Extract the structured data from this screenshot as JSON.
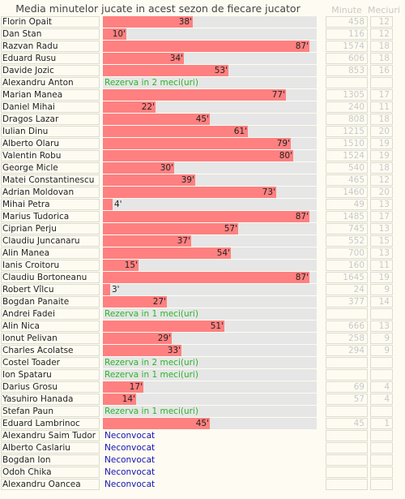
{
  "chart_data": {
    "type": "bar",
    "title": "Media minutelor jucate in acest sezon de fiecare jucator",
    "columns": {
      "minutes": "Minute",
      "matches": "Meciuri"
    },
    "xlim": [
      0,
      90
    ],
    "players": [
      {
        "name": "Florin Opait",
        "avg": 38,
        "label": "38'",
        "minutes": 458,
        "matches": 12
      },
      {
        "name": "Dan Stan",
        "avg": 10,
        "label": "10'",
        "minutes": 116,
        "matches": 12
      },
      {
        "name": "Razvan Radu",
        "avg": 87,
        "label": "87'",
        "minutes": 1574,
        "matches": 18
      },
      {
        "name": "Eduard Rusu",
        "avg": 34,
        "label": "34'",
        "minutes": 606,
        "matches": 18
      },
      {
        "name": "Davide Jozic",
        "avg": 53,
        "label": "53'",
        "minutes": 853,
        "matches": 16
      },
      {
        "name": "Alexandru Anton",
        "note": "Rezerva in 2 meci(uri)",
        "note_type": "rezerva"
      },
      {
        "name": "Marian Manea",
        "avg": 77,
        "label": "77'",
        "minutes": 1305,
        "matches": 17
      },
      {
        "name": "Daniel Mihai",
        "avg": 22,
        "label": "22'",
        "minutes": 240,
        "matches": 11
      },
      {
        "name": "Dragos Lazar",
        "avg": 45,
        "label": "45'",
        "minutes": 808,
        "matches": 18
      },
      {
        "name": "Iulian Dinu",
        "avg": 61,
        "label": "61'",
        "minutes": 1215,
        "matches": 20
      },
      {
        "name": "Alberto Olaru",
        "avg": 79,
        "label": "79'",
        "minutes": 1510,
        "matches": 19
      },
      {
        "name": "Valentin Robu",
        "avg": 80,
        "label": "80'",
        "minutes": 1524,
        "matches": 19
      },
      {
        "name": "George Micle",
        "avg": 30,
        "label": "30'",
        "minutes": 540,
        "matches": 18
      },
      {
        "name": "Matei Constantinescu",
        "avg": 39,
        "label": "39'",
        "minutes": 465,
        "matches": 12
      },
      {
        "name": "Adrian Moldovan",
        "avg": 73,
        "label": "73'",
        "minutes": 1460,
        "matches": 20
      },
      {
        "name": "Mihai Petra",
        "avg": 4,
        "label": "4'",
        "minutes": 49,
        "matches": 13
      },
      {
        "name": "Marius Tudorica",
        "avg": 87,
        "label": "87'",
        "minutes": 1485,
        "matches": 17
      },
      {
        "name": "Ciprian Perju",
        "avg": 57,
        "label": "57'",
        "minutes": 745,
        "matches": 13
      },
      {
        "name": "Claudiu Juncanaru",
        "avg": 37,
        "label": "37'",
        "minutes": 552,
        "matches": 15
      },
      {
        "name": "Alin Manea",
        "avg": 54,
        "label": "54'",
        "minutes": 700,
        "matches": 13
      },
      {
        "name": "Ianis Croitoru",
        "avg": 15,
        "label": "15'",
        "minutes": 160,
        "matches": 11
      },
      {
        "name": "Claudiu Bortoneanu",
        "avg": 87,
        "label": "87'",
        "minutes": 1645,
        "matches": 19
      },
      {
        "name": "Robert Vîlcu",
        "avg": 3,
        "label": "3'",
        "minutes": 24,
        "matches": 9
      },
      {
        "name": "Bogdan Panaite",
        "avg": 27,
        "label": "27'",
        "minutes": 377,
        "matches": 14
      },
      {
        "name": "Andrei Fadei",
        "note": "Rezerva in 1 meci(uri)",
        "note_type": "rezerva"
      },
      {
        "name": "Alin Nica",
        "avg": 51,
        "label": "51'",
        "minutes": 666,
        "matches": 13
      },
      {
        "name": "Ionut Pelivan",
        "avg": 29,
        "label": "29'",
        "minutes": 258,
        "matches": 9
      },
      {
        "name": "Charles Acolatse",
        "avg": 33,
        "label": "33'",
        "minutes": 294,
        "matches": 9
      },
      {
        "name": "Costel Toader",
        "note": "Rezerva in 2 meci(uri)",
        "note_type": "rezerva"
      },
      {
        "name": "Ion Spataru",
        "note": "Rezerva in 1 meci(uri)",
        "note_type": "rezerva"
      },
      {
        "name": "Darius Grosu",
        "avg": 17,
        "label": "17'",
        "minutes": 69,
        "matches": 4
      },
      {
        "name": "Yasuhiro Hanada",
        "avg": 14,
        "label": "14'",
        "minutes": 57,
        "matches": 4
      },
      {
        "name": "Stefan Paun",
        "note": "Rezerva in 1 meci(uri)",
        "note_type": "rezerva"
      },
      {
        "name": "Eduard Lambrinoc",
        "avg": 45,
        "label": "45'",
        "minutes": 45,
        "matches": 1
      },
      {
        "name": "Alexandru Saim Tudor",
        "note": "Neconvocat",
        "note_type": "neconvocat"
      },
      {
        "name": "Alberto Caslariu",
        "note": "Neconvocat",
        "note_type": "neconvocat"
      },
      {
        "name": "Bogdan Ion",
        "note": "Neconvocat",
        "note_type": "neconvocat"
      },
      {
        "name": "Odoh Chika",
        "note": "Neconvocat",
        "note_type": "neconvocat"
      },
      {
        "name": "Alexandru Oancea",
        "note": "Neconvocat",
        "note_type": "neconvocat"
      }
    ]
  }
}
